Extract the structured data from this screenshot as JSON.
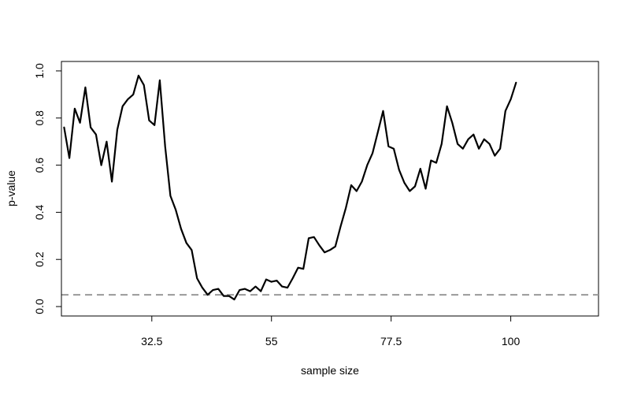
{
  "chart_data": {
    "type": "line",
    "title": "",
    "xlabel": "sample size",
    "ylabel": "p-value",
    "xlim": [
      15.5,
      116.5
    ],
    "ylim": [
      -0.04,
      1.04
    ],
    "x_ticks": [
      32.5,
      55,
      77.5,
      100
    ],
    "x_tick_labels": [
      "32.5",
      "55",
      "77.5",
      "100"
    ],
    "y_ticks": [
      0.0,
      0.2,
      0.4,
      0.6,
      0.8,
      1.0
    ],
    "y_tick_labels": [
      "0.0",
      "0.2",
      "0.4",
      "0.6",
      "0.8",
      "1.0"
    ],
    "grid": false,
    "reference_line": {
      "y": 0.05,
      "style": "dashed",
      "color": "#999999"
    },
    "series": [
      {
        "color": "#000000",
        "x": [
          16,
          17,
          18,
          19,
          20,
          21,
          22,
          23,
          24,
          25,
          26,
          27,
          28,
          29,
          30,
          31,
          32,
          33,
          34,
          35,
          36,
          37,
          38,
          39,
          40,
          41,
          42,
          43,
          44,
          45,
          46,
          47,
          48,
          49,
          50,
          51,
          52,
          53,
          54,
          55,
          56,
          57,
          58,
          59,
          60,
          61,
          62,
          63,
          64,
          65,
          66,
          67,
          68,
          69,
          70,
          71,
          72,
          73,
          74,
          75,
          76,
          77,
          78,
          79,
          80,
          81,
          82,
          83,
          84,
          85,
          86,
          87,
          88,
          89,
          90,
          91,
          92,
          93,
          94,
          95,
          96,
          97,
          98,
          99,
          100,
          101
        ],
        "values": [
          0.76,
          0.63,
          0.84,
          0.78,
          0.93,
          0.76,
          0.73,
          0.6,
          0.7,
          0.53,
          0.75,
          0.85,
          0.88,
          0.9,
          0.98,
          0.94,
          0.79,
          0.77,
          0.96,
          0.68,
          0.47,
          0.41,
          0.33,
          0.27,
          0.24,
          0.12,
          0.08,
          0.05,
          0.07,
          0.075,
          0.045,
          0.045,
          0.03,
          0.07,
          0.075,
          0.065,
          0.085,
          0.065,
          0.115,
          0.105,
          0.11,
          0.085,
          0.08,
          0.12,
          0.165,
          0.16,
          0.29,
          0.295,
          0.26,
          0.23,
          0.24,
          0.255,
          0.34,
          0.42,
          0.515,
          0.49,
          0.53,
          0.6,
          0.65,
          0.74,
          0.83,
          0.68,
          0.67,
          0.58,
          0.525,
          0.49,
          0.51,
          0.585,
          0.5,
          0.62,
          0.61,
          0.69,
          0.85,
          0.78,
          0.69,
          0.67,
          0.71,
          0.73,
          0.67,
          0.71,
          0.69,
          0.64,
          0.67,
          0.83,
          0.88,
          0.95
        ]
      }
    ]
  }
}
